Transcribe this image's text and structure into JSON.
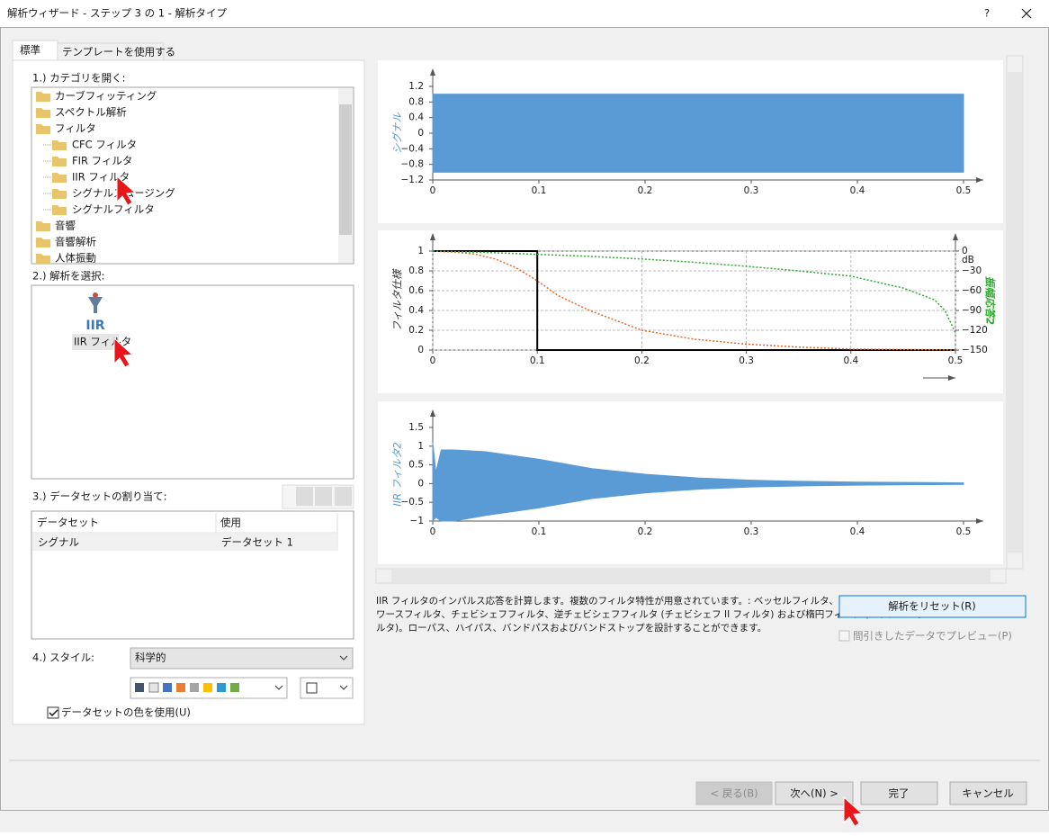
{
  "window": {
    "title": "解析ウィザード - ステップ 3 の 1 - 解析タイプ",
    "help": "?"
  },
  "tabs": [
    "標準",
    "テンプレートを使用する"
  ],
  "section1": {
    "label": "1.) カテゴリを開く:",
    "tree": [
      {
        "label": "カーブフィッティング"
      },
      {
        "label": "スペクトル解析"
      },
      {
        "label": "フィルタ",
        "children": [
          "CFC フィルタ",
          "FIR フィルタ",
          "IIR フィルタ",
          "シグナルスムージング",
          "シグナルフィルタ"
        ]
      },
      {
        "label": "音響"
      },
      {
        "label": "音響解析"
      },
      {
        "label": "人体振動"
      }
    ]
  },
  "section2": {
    "label": "2.) 解析を選択:",
    "icon_text": "IIR",
    "item": "IIR フィルタ"
  },
  "section3": {
    "label": "3.) データセットの割り当て:",
    "table": {
      "headers": [
        "データセット",
        "使用"
      ],
      "rows": [
        [
          "シグナル",
          "データセット 1"
        ]
      ]
    }
  },
  "section4": {
    "label": "4.) スタイル:",
    "style": "科学的",
    "use_colors": "データセットの色を使用(U)"
  },
  "description": [
    "IIR フィルタのインパルス応答を計算します。複数のフィルタ特性が用意されています。: ベッセルフィルタ、バター",
    "ワースフィルタ、チェビシェフフィルタ、逆チェビシェフフィルタ (チェビシェフ II フィルタ) および楕円フィルタ (カウアーフィ",
    "ルタ)。ローパス、ハイパス、バンドパスおよびバンドストップを設計することができます。"
  ],
  "reset_button": "解析をリセット(R)",
  "preview_checkbox": "間引きしたデータでプレビュー(P)",
  "buttons": [
    "< 戻る(B)",
    "次へ(N) >",
    "完了",
    "キャンセル"
  ],
  "chart_data": [
    {
      "type": "area",
      "ylabel": "シグナル",
      "ylabel_color": "#5b9bd5",
      "xlim": [
        0,
        0.5
      ],
      "ylim": [
        -1.2,
        1.2
      ],
      "xticks": [
        0,
        0.1,
        0.2,
        0.3,
        0.4,
        0.5
      ],
      "yticks": [
        1.2,
        0.8,
        0.4,
        0,
        {
          "value": -0.4,
          "label": "−0.4"
        },
        {
          "value": -0.8,
          "label": "−0.8"
        },
        {
          "value": -1.2,
          "label": "−1.2"
        }
      ],
      "grid": false,
      "series": [
        {
          "color": "#5b9bd5",
          "x": [
            0,
            0.002,
            0.5
          ],
          "values": [
            1,
            1,
            1
          ]
        },
        {
          "color": "#5b9bd5",
          "x": [
            0,
            0.002,
            0.5
          ],
          "values": [
            -1,
            -1,
            -1
          ]
        }
      ]
    },
    {
      "type": "line",
      "ylabel": "フィルタ仕様",
      "ylabel_color": "#333333",
      "y2label": "振幅応答2",
      "y2label_color": "#2eaa2e",
      "y2unit": "dB",
      "xlim": [
        0,
        0.5
      ],
      "ylim": [
        0,
        1
      ],
      "y2lim": [
        -150,
        0
      ],
      "xticks": [
        0,
        0.1,
        0.2,
        0.3,
        0.4,
        0.5
      ],
      "yticks": [
        1,
        0.8,
        0.6,
        0.4,
        0.2,
        0
      ],
      "y2ticks": [
        0,
        {
          "value": -30,
          "label": "−30"
        },
        {
          "value": -60,
          "label": "−60"
        },
        {
          "value": -90,
          "label": "−90"
        },
        {
          "value": -120,
          "label": "−120"
        },
        {
          "value": -150,
          "label": "−150"
        }
      ],
      "grid": true,
      "series": [
        {
          "color": "#000000",
          "style": "solid",
          "x": [
            0,
            0.1,
            0.1,
            0.5
          ],
          "values": [
            1,
            1,
            0,
            0
          ]
        },
        {
          "color": "#e8692a",
          "style": "dotted",
          "x": [
            0,
            0.02,
            0.04,
            0.06,
            0.08,
            0.1,
            0.12,
            0.15,
            0.2,
            0.25,
            0.3,
            0.35,
            0.4,
            0.45,
            0.5
          ],
          "values": [
            1,
            0.99,
            0.97,
            0.92,
            0.83,
            0.7,
            0.55,
            0.4,
            0.2,
            0.11,
            0.06,
            0.03,
            0.01,
            0.005,
            0
          ]
        },
        {
          "color": "#2eaa2e",
          "style": "dotted",
          "axis": "y2",
          "x": [
            0,
            0.05,
            0.1,
            0.15,
            0.2,
            0.25,
            0.3,
            0.35,
            0.4,
            0.45,
            0.48,
            0.49,
            0.5
          ],
          "values": [
            0,
            -2,
            -5,
            -8,
            -12,
            -17,
            -23,
            -30,
            -38,
            -56,
            -74,
            -90,
            -124
          ]
        }
      ]
    },
    {
      "type": "area",
      "ylabel": "IIR フィルタ2",
      "ylabel_color": "#5b9bd5",
      "xlim": [
        0,
        0.5
      ],
      "ylim": [
        -1,
        1.5
      ],
      "xticks": [
        0,
        0.1,
        0.2,
        0.3,
        0.4,
        0.5
      ],
      "yticks": [
        1.5,
        1,
        0.5,
        0,
        {
          "value": -0.5,
          "label": "−0.5"
        },
        {
          "value": -1,
          "label": "−1"
        }
      ],
      "grid": false,
      "series": [
        {
          "color": "#5b9bd5",
          "x": [
            0,
            0.003,
            0.008,
            0.02,
            0.05,
            0.1,
            0.15,
            0.2,
            0.25,
            0.3,
            0.35,
            0.4,
            0.45,
            0.5
          ],
          "values": [
            1.1,
            0.3,
            0.9,
            0.9,
            0.85,
            0.65,
            0.4,
            0.25,
            0.15,
            0.09,
            0.06,
            0.04,
            0.03,
            0.02
          ]
        },
        {
          "color": "#5b9bd5",
          "x": [
            0,
            0.003,
            0.008,
            0.02,
            0.05,
            0.1,
            0.15,
            0.2,
            0.25,
            0.3,
            0.35,
            0.4,
            0.45,
            0.5
          ],
          "values": [
            -1,
            -0.9,
            -1,
            -1,
            -0.85,
            -0.65,
            -0.4,
            -0.25,
            -0.15,
            -0.09,
            -0.06,
            -0.04,
            -0.03,
            -0.02
          ]
        }
      ]
    }
  ]
}
